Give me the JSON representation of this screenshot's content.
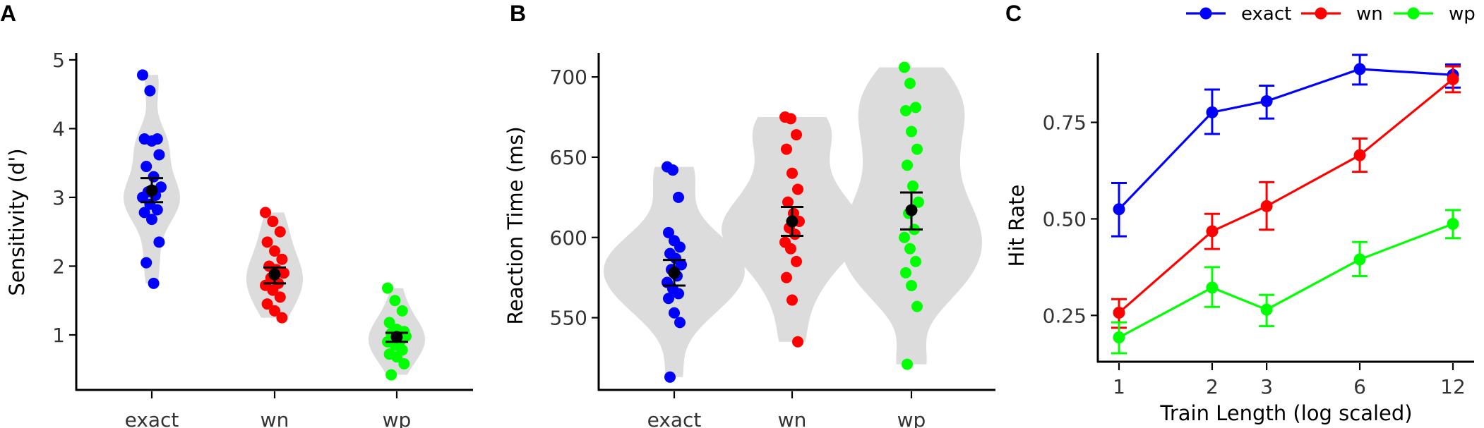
{
  "colors": {
    "exact": "#0000ff",
    "wn": "#ff0000",
    "wp": "#00ff00",
    "violin": "#dcdcdc",
    "mean": "#000000"
  },
  "chart_data": [
    {
      "panel": "A",
      "type": "violin",
      "ylabel": "Sensitivity (d')",
      "ylim": [
        0.2,
        5.05
      ],
      "yticks": [
        1,
        2,
        3,
        4,
        5
      ],
      "categories": [
        "exact",
        "wn",
        "wp"
      ],
      "series": [
        {
          "category": "exact",
          "mean": 3.1,
          "se_low": 2.93,
          "se_high": 3.28,
          "points": [
            4.78,
            4.55,
            3.85,
            3.85,
            3.82,
            3.62,
            3.45,
            3.3,
            3.15,
            3.08,
            3.03,
            3.0,
            2.9,
            2.82,
            2.78,
            2.68,
            2.35,
            2.05,
            1.75
          ]
        },
        {
          "category": "wn",
          "mean": 1.88,
          "se_low": 1.75,
          "se_high": 1.98,
          "points": [
            2.78,
            2.65,
            2.5,
            2.35,
            2.22,
            2.1,
            2.0,
            1.95,
            1.9,
            1.83,
            1.75,
            1.72,
            1.65,
            1.55,
            1.45,
            1.35,
            1.25
          ]
        },
        {
          "category": "wp",
          "mean": 0.97,
          "se_low": 0.9,
          "se_high": 1.03,
          "points": [
            1.68,
            1.5,
            1.35,
            1.18,
            1.08,
            1.05,
            1.02,
            1.0,
            0.98,
            0.95,
            0.92,
            0.9,
            0.85,
            0.78,
            0.72,
            0.68,
            0.58,
            0.42
          ]
        }
      ]
    },
    {
      "panel": "B",
      "type": "violin",
      "ylabel": "Reaction  Time (ms)",
      "ylim": [
        505,
        715
      ],
      "yticks": [
        550,
        600,
        650,
        700
      ],
      "categories": [
        "exact",
        "wn",
        "wp"
      ],
      "series": [
        {
          "category": "exact",
          "mean": 578,
          "se_low": 570,
          "se_high": 586,
          "points": [
            644,
            642,
            625,
            603,
            598,
            594,
            590,
            587,
            583,
            580,
            576,
            572,
            568,
            565,
            562,
            553,
            547,
            513
          ]
        },
        {
          "category": "wn",
          "mean": 610,
          "se_low": 601,
          "se_high": 619,
          "points": [
            675,
            674,
            664,
            655,
            640,
            630,
            622,
            615,
            610,
            606,
            602,
            597,
            593,
            585,
            575,
            561,
            535
          ]
        },
        {
          "category": "wp",
          "mean": 617,
          "se_low": 605,
          "se_high": 628,
          "points": [
            706,
            696,
            681,
            679,
            666,
            655,
            645,
            632,
            622,
            615,
            605,
            600,
            593,
            585,
            578,
            570,
            557,
            521
          ]
        }
      ]
    },
    {
      "panel": "C",
      "type": "line",
      "xlabel": "Train Length (log scaled)",
      "ylabel": "Hit Rate",
      "x_scale": "log",
      "x": [
        1,
        2,
        3,
        6,
        12
      ],
      "ylim": [
        0.13,
        0.93
      ],
      "yticks": [
        0.25,
        0.5,
        0.75
      ],
      "ytick_labels": [
        "0.25",
        "0.50",
        "0.75"
      ],
      "legend_position": "top",
      "series": [
        {
          "name": "exact",
          "values": [
            0.525,
            0.776,
            0.805,
            0.888,
            0.873
          ],
          "err_low": [
            0.455,
            0.72,
            0.76,
            0.848,
            0.84
          ],
          "err_high": [
            0.593,
            0.835,
            0.845,
            0.925,
            0.9
          ]
        },
        {
          "name": "wn",
          "values": [
            0.257,
            0.468,
            0.533,
            0.665,
            0.862
          ],
          "err_low": [
            0.218,
            0.422,
            0.472,
            0.622,
            0.828
          ],
          "err_high": [
            0.292,
            0.513,
            0.595,
            0.708,
            0.895
          ]
        },
        {
          "name": "wp",
          "values": [
            0.193,
            0.322,
            0.265,
            0.395,
            0.487
          ],
          "err_low": [
            0.152,
            0.272,
            0.222,
            0.352,
            0.45
          ],
          "err_high": [
            0.232,
            0.375,
            0.303,
            0.44,
            0.523
          ]
        }
      ]
    }
  ]
}
